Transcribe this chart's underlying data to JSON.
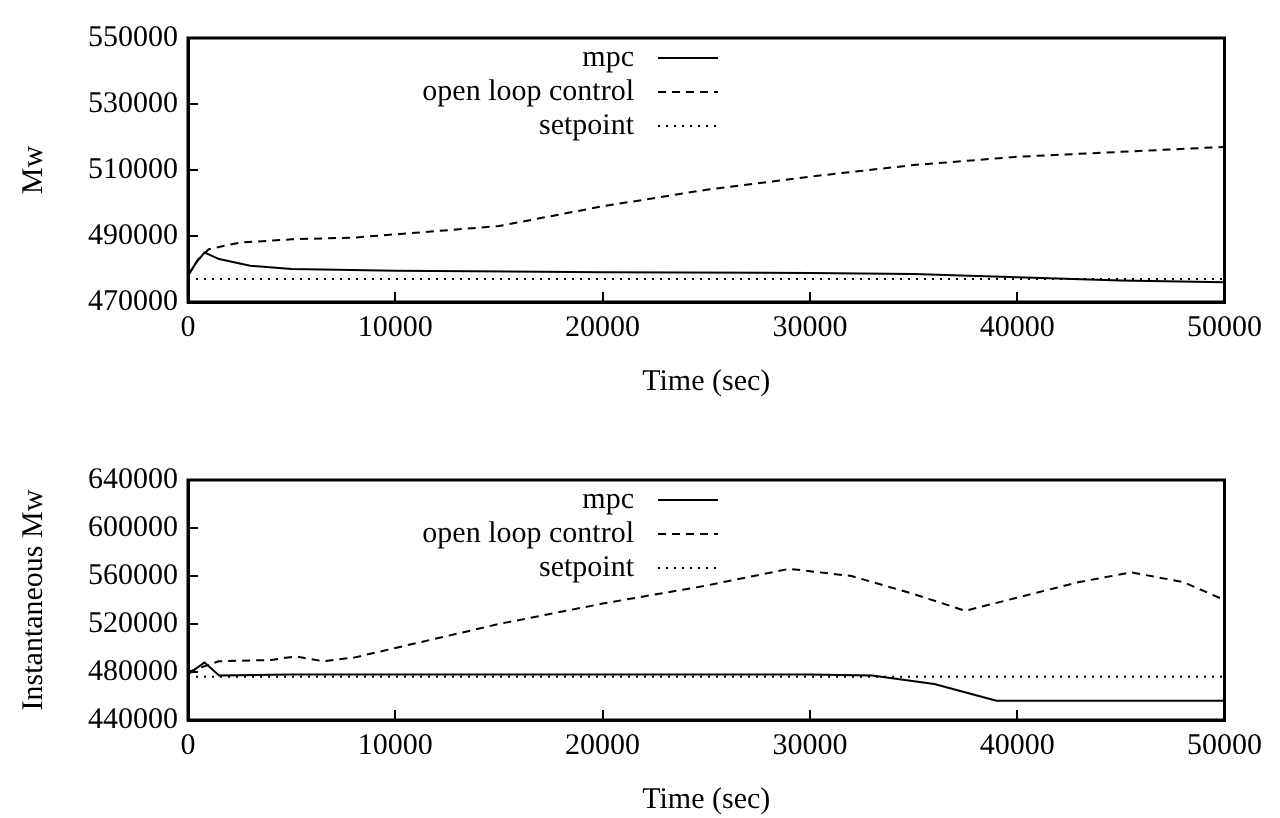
{
  "chart_data": [
    {
      "type": "line",
      "xlabel": "Time (sec)",
      "ylabel": "Mw",
      "xlim": [
        0,
        50000
      ],
      "xticks": [
        0,
        10000,
        20000,
        30000,
        40000,
        50000
      ],
      "ylim": [
        470000,
        550000
      ],
      "yticks": [
        470000,
        490000,
        510000,
        530000,
        550000
      ],
      "legend": "top",
      "grid": false,
      "marker": "none",
      "series": [
        {
          "name": "mpc",
          "color": "#000000",
          "line_style": "solid",
          "x": [
            0,
            400,
            800,
            1500,
            3000,
            5000,
            10000,
            20000,
            30000,
            35000,
            40000,
            45000,
            50000
          ],
          "values": [
            478000,
            482000,
            485000,
            483000,
            481000,
            480000,
            479500,
            479000,
            478800,
            478500,
            477500,
            476500,
            476000
          ]
        },
        {
          "name": "open loop control",
          "color": "#000000",
          "line_style": "dashed",
          "x": [
            0,
            500,
            1000,
            2500,
            5000,
            8000,
            10000,
            15000,
            20000,
            25000,
            30000,
            35000,
            40000,
            45000,
            50000
          ],
          "values": [
            478000,
            483000,
            486000,
            488000,
            489000,
            489500,
            490500,
            493000,
            499000,
            504000,
            508000,
            511500,
            514000,
            515500,
            517000
          ]
        },
        {
          "name": "setpoint",
          "color": "#000000",
          "line_style": "dotted",
          "x": [
            0,
            50000
          ],
          "values": [
            477000,
            477000
          ]
        }
      ]
    },
    {
      "type": "line",
      "xlabel": "Time (sec)",
      "ylabel": "Instantaneous Mw",
      "xlim": [
        0,
        50000
      ],
      "xticks": [
        0,
        10000,
        20000,
        30000,
        40000,
        50000
      ],
      "ylim": [
        440000,
        640000
      ],
      "yticks": [
        440000,
        480000,
        520000,
        560000,
        600000,
        640000
      ],
      "legend": "top",
      "grid": false,
      "marker": "none",
      "series": [
        {
          "name": "mpc",
          "color": "#000000",
          "line_style": "solid",
          "x": [
            0,
            800,
            1500,
            5000,
            10000,
            20000,
            30000,
            33000,
            36000,
            39000,
            45000,
            50000
          ],
          "values": [
            478000,
            488000,
            477000,
            478000,
            478000,
            478000,
            478000,
            477000,
            470000,
            456000,
            456000,
            456000
          ]
        },
        {
          "name": "open loop control",
          "color": "#000000",
          "line_style": "dashed",
          "x": [
            0,
            1500,
            4000,
            5200,
            6500,
            8000,
            10000,
            15000,
            20000,
            25000,
            29000,
            32000,
            35000,
            37500,
            40000,
            43000,
            45500,
            48000,
            50000
          ],
          "values": [
            480000,
            489000,
            490000,
            493000,
            489000,
            492000,
            500000,
            520000,
            537000,
            552000,
            566000,
            560000,
            545000,
            531000,
            542000,
            555000,
            563000,
            555000,
            540000
          ]
        },
        {
          "name": "setpoint",
          "color": "#000000",
          "line_style": "dotted",
          "x": [
            0,
            50000
          ],
          "values": [
            476000,
            476000
          ]
        }
      ]
    }
  ]
}
